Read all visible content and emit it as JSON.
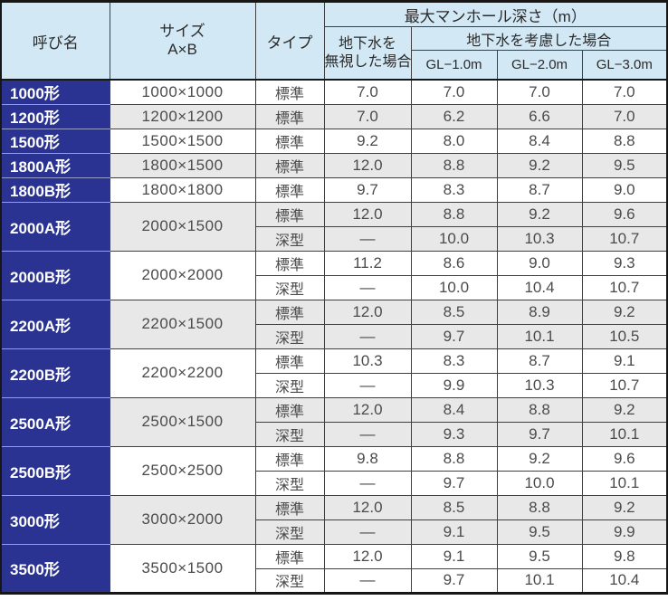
{
  "table": {
    "headers": {
      "name": "呼び名",
      "size_lines": [
        "サイズ",
        "A×B"
      ],
      "type": "タイプ",
      "depth_title": "最大マンホール深さ（m）",
      "ignore_lines": [
        "地下水を",
        "無視した場合"
      ],
      "consider_gw": "地下水を考慮した場合",
      "gl_levels": [
        "GL−1.0m",
        "GL−2.0m",
        "GL−3.0m"
      ]
    },
    "groups": [
      {
        "name": "1000形",
        "size": "1000×1000",
        "rows": [
          {
            "type": "標準",
            "values": [
              "7.0",
              "7.0",
              "7.0",
              "7.0"
            ]
          }
        ]
      },
      {
        "name": "1200形",
        "size": "1200×1200",
        "rows": [
          {
            "type": "標準",
            "values": [
              "7.0",
              "6.2",
              "6.6",
              "7.0"
            ]
          }
        ]
      },
      {
        "name": "1500形",
        "size": "1500×1500",
        "rows": [
          {
            "type": "標準",
            "values": [
              "9.2",
              "8.0",
              "8.4",
              "8.8"
            ]
          }
        ]
      },
      {
        "name": "1800A形",
        "size": "1800×1500",
        "rows": [
          {
            "type": "標準",
            "values": [
              "12.0",
              "8.8",
              "9.2",
              "9.5"
            ]
          }
        ]
      },
      {
        "name": "1800B形",
        "size": "1800×1800",
        "rows": [
          {
            "type": "標準",
            "values": [
              "9.7",
              "8.3",
              "8.7",
              "9.0"
            ]
          }
        ]
      },
      {
        "name": "2000A形",
        "size": "2000×1500",
        "rows": [
          {
            "type": "標準",
            "values": [
              "12.0",
              "8.8",
              "9.2",
              "9.6"
            ]
          },
          {
            "type": "深型",
            "values": [
              "—",
              "10.0",
              "10.3",
              "10.7"
            ]
          }
        ]
      },
      {
        "name": "2000B形",
        "size": "2000×2000",
        "rows": [
          {
            "type": "標準",
            "values": [
              "11.2",
              "8.6",
              "9.0",
              "9.3"
            ]
          },
          {
            "type": "深型",
            "values": [
              "—",
              "10.0",
              "10.4",
              "10.7"
            ]
          }
        ]
      },
      {
        "name": "2200A形",
        "size": "2200×1500",
        "rows": [
          {
            "type": "標準",
            "values": [
              "12.0",
              "8.5",
              "8.9",
              "9.2"
            ]
          },
          {
            "type": "深型",
            "values": [
              "—",
              "9.7",
              "10.1",
              "10.5"
            ]
          }
        ]
      },
      {
        "name": "2200B形",
        "size": "2200×2200",
        "rows": [
          {
            "type": "標準",
            "values": [
              "10.3",
              "8.3",
              "8.7",
              "9.1"
            ]
          },
          {
            "type": "深型",
            "values": [
              "—",
              "9.9",
              "10.3",
              "10.7"
            ]
          }
        ]
      },
      {
        "name": "2500A形",
        "size": "2500×1500",
        "rows": [
          {
            "type": "標準",
            "values": [
              "12.0",
              "8.4",
              "8.8",
              "9.2"
            ]
          },
          {
            "type": "深型",
            "values": [
              "—",
              "9.3",
              "9.7",
              "10.1"
            ]
          }
        ]
      },
      {
        "name": "2500B形",
        "size": "2500×2500",
        "rows": [
          {
            "type": "標準",
            "values": [
              "9.8",
              "8.8",
              "9.2",
              "9.6"
            ]
          },
          {
            "type": "深型",
            "values": [
              "—",
              "9.7",
              "10.0",
              "10.1"
            ]
          }
        ]
      },
      {
        "name": "3000形",
        "size": "3000×2000",
        "rows": [
          {
            "type": "標準",
            "values": [
              "12.0",
              "8.5",
              "8.8",
              "9.2"
            ]
          },
          {
            "type": "深型",
            "values": [
              "—",
              "9.1",
              "9.5",
              "9.9"
            ]
          }
        ]
      },
      {
        "name": "3500形",
        "size": "3500×1500",
        "rows": [
          {
            "type": "標準",
            "values": [
              "12.0",
              "9.1",
              "9.5",
              "9.8"
            ]
          },
          {
            "type": "深型",
            "values": [
              "—",
              "9.7",
              "10.1",
              "10.4"
            ]
          }
        ]
      }
    ],
    "colors": {
      "name_column_navy": "#2a3391",
      "header_light_blue": "#d2e8f4",
      "stripe_gray": "#e8e8e8",
      "grid_line": "#3f3f3f",
      "outer_border": "#161616"
    }
  }
}
